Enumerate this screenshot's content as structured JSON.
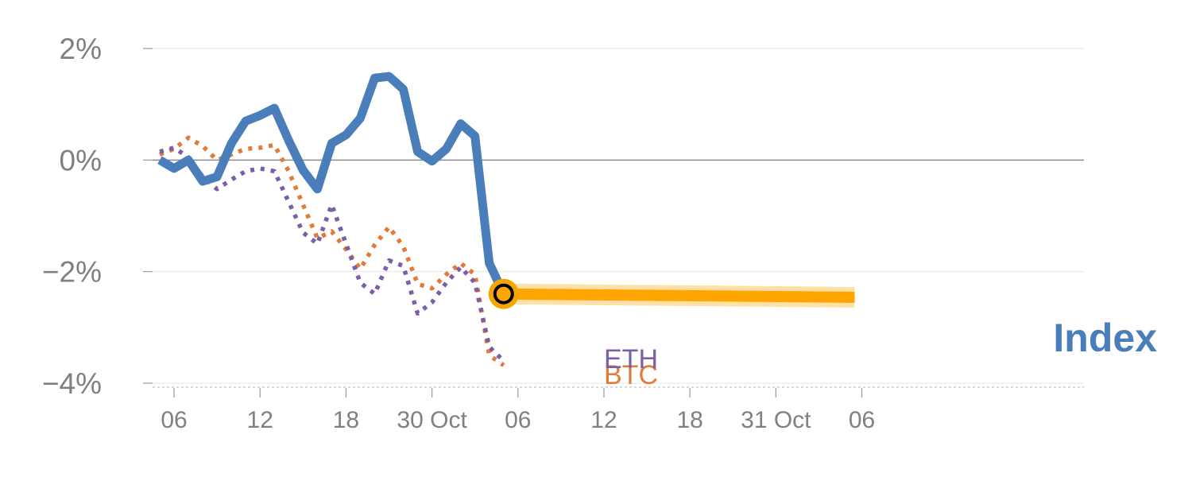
{
  "chart_data": {
    "type": "line",
    "title": "",
    "xlabel": "",
    "ylabel": "",
    "ylim": [
      -4,
      2
    ],
    "yticks": [
      {
        "value": 2,
        "label": "2%"
      },
      {
        "value": 0,
        "label": "0%"
      },
      {
        "value": -2,
        "label": "−2%"
      },
      {
        "value": -4,
        "label": "−4%"
      }
    ],
    "xlim": [
      3.5,
      68.5
    ],
    "xticks": [
      {
        "value": 5,
        "label": "06"
      },
      {
        "value": 11,
        "label": "12"
      },
      {
        "value": 17,
        "label": "18"
      },
      {
        "value": 23,
        "label": "30 Oct"
      },
      {
        "value": 29,
        "label": "06"
      },
      {
        "value": 35,
        "label": "12"
      },
      {
        "value": 41,
        "label": "18"
      },
      {
        "value": 47,
        "label": "31 Oct"
      },
      {
        "value": 53,
        "label": "06"
      }
    ],
    "series": [
      {
        "name": "Index",
        "label": "Index",
        "color": "#4a7ebb",
        "style": "solid",
        "points": [
          [
            4,
            0.0
          ],
          [
            5,
            -0.15
          ],
          [
            6,
            0.0
          ],
          [
            7,
            -0.38
          ],
          [
            8,
            -0.3
          ],
          [
            9,
            0.3
          ],
          [
            10,
            0.7
          ],
          [
            11,
            0.8
          ],
          [
            12,
            0.93
          ],
          [
            13,
            0.35
          ],
          [
            14,
            -0.18
          ],
          [
            15,
            -0.52
          ],
          [
            16,
            0.3
          ],
          [
            17,
            0.45
          ],
          [
            18,
            0.75
          ],
          [
            19,
            1.47
          ],
          [
            20,
            1.5
          ],
          [
            21,
            1.27
          ],
          [
            22,
            0.15
          ],
          [
            23,
            -0.02
          ],
          [
            24,
            0.2
          ],
          [
            25,
            0.65
          ],
          [
            26,
            0.43
          ],
          [
            27,
            -1.85
          ],
          [
            28,
            -2.4
          ]
        ]
      },
      {
        "name": "BTC",
        "label": "BTC",
        "color": "#e07b39",
        "style": "dotted",
        "points": [
          [
            4,
            0.1
          ],
          [
            5,
            0.2
          ],
          [
            6,
            0.4
          ],
          [
            7,
            0.25
          ],
          [
            8,
            0.0
          ],
          [
            9,
            0.1
          ],
          [
            10,
            0.2
          ],
          [
            11,
            0.22
          ],
          [
            12,
            0.27
          ],
          [
            13,
            -0.2
          ],
          [
            14,
            -0.8
          ],
          [
            15,
            -1.4
          ],
          [
            16,
            -1.28
          ],
          [
            17,
            -1.6
          ],
          [
            18,
            -1.95
          ],
          [
            19,
            -1.52
          ],
          [
            20,
            -1.2
          ],
          [
            21,
            -1.55
          ],
          [
            22,
            -2.22
          ],
          [
            23,
            -2.3
          ],
          [
            24,
            -2.05
          ],
          [
            25,
            -1.85
          ],
          [
            26,
            -2.05
          ],
          [
            27,
            -3.5
          ],
          [
            28,
            -3.68
          ]
        ]
      },
      {
        "name": "ETH",
        "label": "ETH",
        "color": "#7b5ea7",
        "style": "dotted",
        "points": [
          [
            4,
            0.15
          ],
          [
            5,
            0.22
          ],
          [
            6,
            0.05
          ],
          [
            7,
            -0.3
          ],
          [
            8,
            -0.52
          ],
          [
            9,
            -0.35
          ],
          [
            10,
            -0.2
          ],
          [
            11,
            -0.15
          ],
          [
            12,
            -0.2
          ],
          [
            13,
            -0.75
          ],
          [
            14,
            -1.3
          ],
          [
            15,
            -1.5
          ],
          [
            16,
            -0.8
          ],
          [
            17,
            -1.5
          ],
          [
            18,
            -2.2
          ],
          [
            19,
            -2.4
          ],
          [
            20,
            -1.8
          ],
          [
            21,
            -1.9
          ],
          [
            22,
            -2.75
          ],
          [
            23,
            -2.55
          ],
          [
            24,
            -2.2
          ],
          [
            25,
            -1.92
          ],
          [
            26,
            -2.2
          ],
          [
            27,
            -3.35
          ],
          [
            28,
            -3.6
          ]
        ]
      }
    ],
    "current_marker": {
      "x": 28,
      "y": -2.4,
      "ring_color": "#f5a500",
      "center_color": "#000000"
    },
    "highlight_band": {
      "x_start": 28,
      "x_end": 52.5,
      "y_start": -2.4,
      "y_end": -2.46,
      "color": "#ffa500"
    }
  }
}
